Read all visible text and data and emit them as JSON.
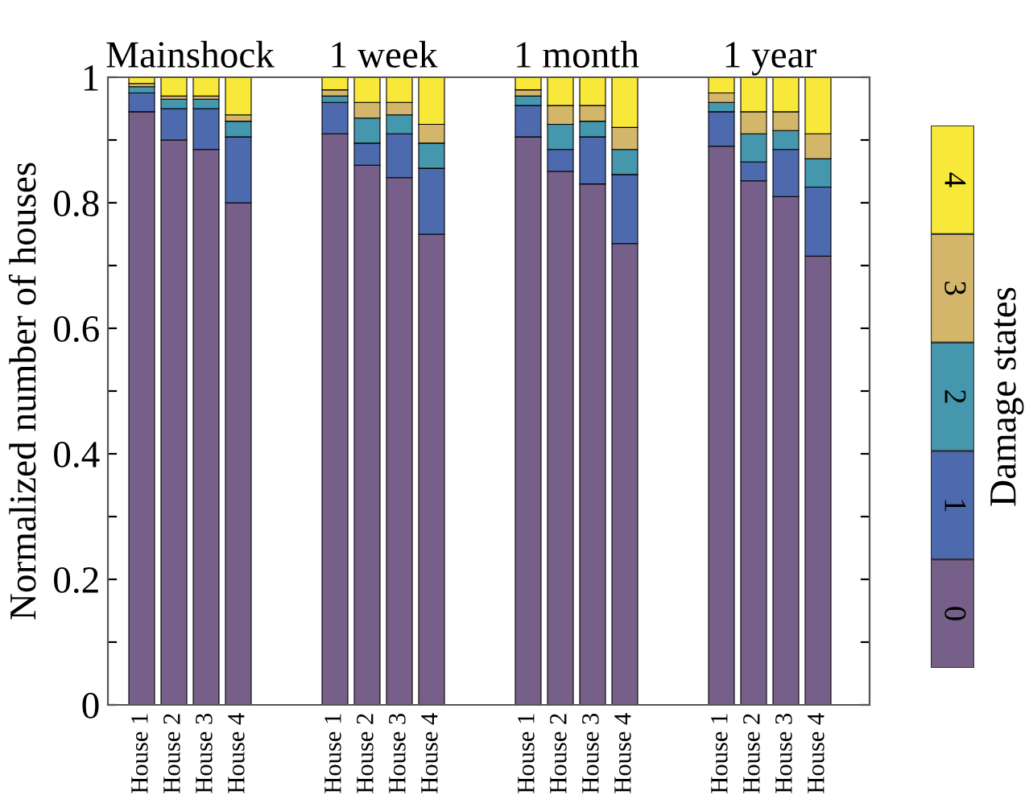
{
  "chart_data": {
    "type": "bar",
    "stacked": true,
    "ylabel": "Normalized number of houses",
    "legend_title": "Damage states",
    "legend": "right",
    "categories": [
      "House 1",
      "House 2",
      "House 3",
      "House 4",
      null,
      null,
      "House 1",
      "House 2",
      "House 3",
      "House 4",
      null,
      null,
      "House 1",
      "House 2",
      "House 3",
      "House 4",
      null,
      null,
      "House 1",
      "House 2",
      "House 3",
      "House 4"
    ],
    "annotations": [
      "Mainshock",
      "1 week",
      "1 month",
      "1 year"
    ],
    "ylim": [
      0,
      1
    ],
    "yticks": [
      0,
      {
        "value": 0.1,
        "label": null
      },
      0.2,
      {
        "value": 0.3,
        "label": null
      },
      0.4,
      {
        "value": 0.5,
        "label": null
      },
      0.6,
      {
        "value": 0.7,
        "label": null
      },
      0.8,
      {
        "value": 0.9,
        "label": null
      },
      1
    ],
    "grid": false,
    "series": [
      {
        "name": "0",
        "color": "#76608a",
        "values": [
          0.945,
          0.9,
          0.885,
          0.8,
          null,
          null,
          0.91,
          0.86,
          0.84,
          0.75,
          null,
          null,
          0.905,
          0.85,
          0.83,
          0.735,
          null,
          null,
          0.89,
          0.835,
          0.81,
          0.715
        ]
      },
      {
        "name": "1",
        "color": "#4d6aaf",
        "values": [
          0.03,
          0.05,
          0.065,
          0.105,
          null,
          null,
          0.05,
          0.035,
          0.07,
          0.105,
          null,
          null,
          0.05,
          0.035,
          0.075,
          0.11,
          null,
          null,
          0.055,
          0.03,
          0.075,
          0.11
        ]
      },
      {
        "name": "2",
        "color": "#4597ae",
        "values": [
          0.01,
          0.015,
          0.015,
          0.025,
          null,
          null,
          0.01,
          0.04,
          0.03,
          0.04,
          null,
          null,
          0.015,
          0.04,
          0.025,
          0.04,
          null,
          null,
          0.015,
          0.045,
          0.03,
          0.045
        ]
      },
      {
        "name": "3",
        "color": "#d4b66a",
        "values": [
          0.005,
          0.005,
          0.005,
          0.01,
          null,
          null,
          0.01,
          0.025,
          0.02,
          0.03,
          null,
          null,
          0.01,
          0.03,
          0.025,
          0.035,
          null,
          null,
          0.015,
          0.035,
          0.03,
          0.04
        ]
      },
      {
        "name": "4",
        "color": "#f7e83a",
        "values": [
          0.01,
          0.03,
          0.03,
          0.06,
          null,
          null,
          0.02,
          0.04,
          0.04,
          0.075,
          null,
          null,
          0.02,
          0.045,
          0.045,
          0.08,
          null,
          null,
          0.025,
          0.055,
          0.055,
          0.09
        ]
      }
    ]
  }
}
